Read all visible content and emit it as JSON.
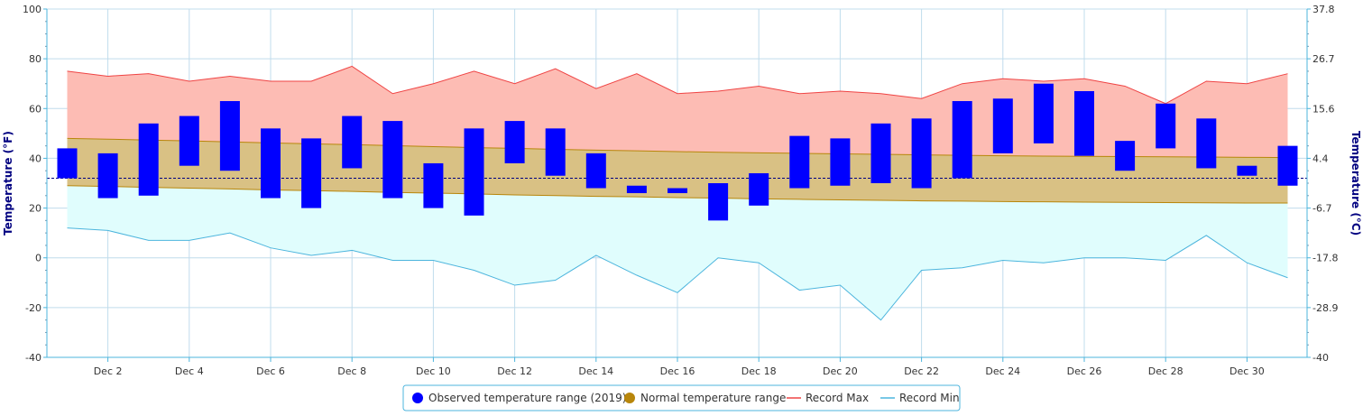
{
  "chart_data": {
    "type": "bar",
    "title": "",
    "y_left_label": "Temperature (°F)",
    "y_right_label": "Temperature (°C)",
    "ylim": [
      -40,
      100
    ],
    "y_left_ticks": [
      "100",
      "80",
      "60",
      "40",
      "20",
      "0",
      "-20",
      "-40"
    ],
    "y_right_ticks": [
      "37.8",
      "26.7",
      "15.6",
      "4.4",
      "-6.7",
      "-17.8",
      "-28.9",
      "-40"
    ],
    "x_tick_labels": [
      "Dec 2",
      "Dec 4",
      "Dec 6",
      "Dec 8",
      "Dec 10",
      "Dec 12",
      "Dec 14",
      "Dec 16",
      "Dec 18",
      "Dec 20",
      "Dec 22",
      "Dec 24",
      "Dec 26",
      "Dec 28",
      "Dec 30"
    ],
    "days": [
      1,
      2,
      3,
      4,
      5,
      6,
      7,
      8,
      9,
      10,
      11,
      12,
      13,
      14,
      15,
      16,
      17,
      18,
      19,
      20,
      21,
      22,
      23,
      24,
      25,
      26,
      27,
      28,
      29,
      30,
      31
    ],
    "freezing_line": 32,
    "series": [
      {
        "name": "Observed temperature range (2019)",
        "color": "#0000ff",
        "low": [
          32,
          24,
          25,
          37,
          35,
          24,
          20,
          36,
          24,
          20,
          17,
          38,
          33,
          28,
          26,
          26,
          15,
          21,
          28,
          29,
          30,
          28,
          32,
          42,
          46,
          41,
          35,
          44,
          36,
          33,
          29
        ],
        "high": [
          44,
          42,
          54,
          57,
          63,
          52,
          48,
          57,
          55,
          38,
          52,
          55,
          52,
          42,
          29,
          28,
          30,
          34,
          49,
          48,
          54,
          56,
          63,
          64,
          70,
          67,
          47,
          62,
          56,
          37,
          45
        ]
      },
      {
        "name": "Normal temperature range",
        "color": "#b8860b",
        "low": [
          29,
          28.7,
          28.3,
          28,
          27.7,
          27.3,
          27,
          26.7,
          26.3,
          26,
          25.7,
          25.3,
          25,
          24.7,
          24.5,
          24.2,
          24,
          23.7,
          23.5,
          23.3,
          23.1,
          22.9,
          22.8,
          22.6,
          22.5,
          22.4,
          22.3,
          22.2,
          22.1,
          22,
          22
        ],
        "high": [
          48,
          47.7,
          47.3,
          47,
          46.6,
          46.2,
          45.8,
          45.5,
          45.1,
          44.7,
          44.3,
          44,
          43.6,
          43.3,
          43,
          42.7,
          42.4,
          42.2,
          42,
          41.8,
          41.6,
          41.4,
          41.2,
          41,
          40.9,
          40.8,
          40.7,
          40.6,
          40.5,
          40.4,
          40.3
        ]
      },
      {
        "name": "Record Max",
        "color": "#ef4444",
        "values": [
          75,
          73,
          74,
          71,
          73,
          71,
          71,
          77,
          66,
          70,
          75,
          70,
          76,
          68,
          74,
          66,
          67,
          69,
          66,
          67,
          66,
          64,
          70,
          72,
          71,
          72,
          69,
          62,
          71,
          70,
          74
        ]
      },
      {
        "name": "Record Min",
        "color": "#4cb5dd",
        "values": [
          12,
          11,
          7,
          7,
          10,
          4,
          1,
          3,
          -1,
          -1,
          -5,
          -11,
          -9,
          1,
          -7,
          -14,
          0,
          -2,
          -13,
          -11,
          -25,
          -5,
          -4,
          -1,
          -2,
          0,
          0,
          -1,
          9,
          -2,
          -8
        ]
      }
    ],
    "legend_position": "bottom-center",
    "grid": true
  },
  "legend": {
    "observed": "Observed temperature range (2019)",
    "normal": "Normal temperature range",
    "record_max": "Record Max",
    "record_min": "Record Min"
  }
}
